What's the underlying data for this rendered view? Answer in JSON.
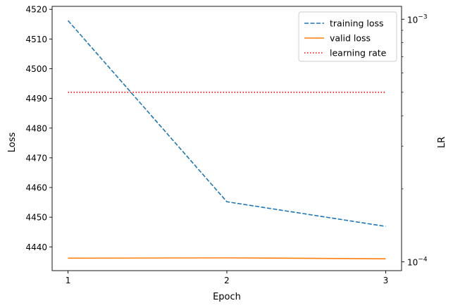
{
  "chart_data": {
    "type": "line",
    "title": "",
    "xlabel": "Epoch",
    "ylabel": "Loss",
    "y2label": "LR",
    "x": [
      1,
      2,
      3
    ],
    "x_ticks": [
      "1",
      "2",
      "3"
    ],
    "xlim": [
      0.9,
      3.1
    ],
    "ylim": [
      4432,
      4521
    ],
    "y_ticks": [
      4440,
      4450,
      4460,
      4470,
      4480,
      4490,
      4500,
      4510,
      4520
    ],
    "y2_scale": "log",
    "y2lim": [
      9.2e-05,
      0.00113
    ],
    "y2_major_ticks": [
      0.0001,
      0.001
    ],
    "y2_major_labels": [
      [
        "10",
        "−4"
      ],
      [
        "10",
        "−3"
      ]
    ],
    "y2_minor_ticks": [
      0.0002,
      0.0003,
      0.0004,
      0.0005,
      0.0006,
      0.0007,
      0.0008,
      0.0009
    ],
    "grid": false,
    "legend_position": "top-right",
    "series": [
      {
        "name": "training loss",
        "axis": "left",
        "values": [
          4516.2,
          4455.2,
          4446.9
        ],
        "color": "#1f77b4",
        "style": "dashed"
      },
      {
        "name": "valid loss",
        "axis": "left",
        "values": [
          4436.2,
          4436.3,
          4436.0
        ],
        "color": "#ff7f0e",
        "style": "solid"
      },
      {
        "name": "learning rate",
        "axis": "right",
        "values": [
          0.0005,
          0.0005,
          0.0005
        ],
        "color": "#ff0000",
        "style": "dotted"
      }
    ]
  }
}
